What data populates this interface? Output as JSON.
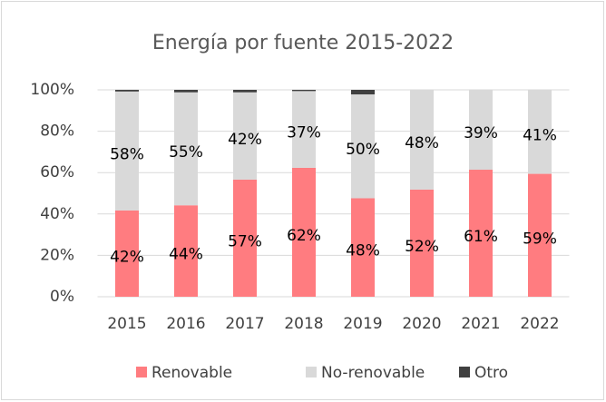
{
  "chart_data": {
    "type": "stacked_bar",
    "title": "Energía por fuente 2015-2022",
    "categories": [
      "2015",
      "2016",
      "2017",
      "2018",
      "2019",
      "2020",
      "2021",
      "2022"
    ],
    "series": [
      {
        "name": "Renovable",
        "color": "#ff7c80",
        "values": [
          41.7,
          44.2,
          56.6,
          62.3,
          47.6,
          51.8,
          61.4,
          59.4
        ],
        "value_labels": [
          "42%",
          "44%",
          "57%",
          "62%",
          "48%",
          "52%",
          "61%",
          "59%"
        ]
      },
      {
        "name": "No-renovable",
        "color": "#d9d9d9",
        "values": [
          57.5,
          54.6,
          42.2,
          37.1,
          50.2,
          48.2,
          38.6,
          40.6
        ],
        "value_labels": [
          "58%",
          "55%",
          "42%",
          "37%",
          "50%",
          "48%",
          "39%",
          "41%"
        ]
      },
      {
        "name": "Otro",
        "color": "#404040",
        "values": [
          0.8,
          1.2,
          1.2,
          0.6,
          2.2,
          0,
          0,
          0
        ]
      }
    ],
    "ylim": [
      0,
      100
    ],
    "yticks": [
      {
        "value": 0,
        "label": "0%"
      },
      {
        "value": 20,
        "label": "20%"
      },
      {
        "value": 40,
        "label": "40%"
      },
      {
        "value": 60,
        "label": "60%"
      },
      {
        "value": 80,
        "label": "80%"
      },
      {
        "value": 100,
        "label": "100%"
      }
    ],
    "grid": true,
    "legend": "bottom"
  }
}
